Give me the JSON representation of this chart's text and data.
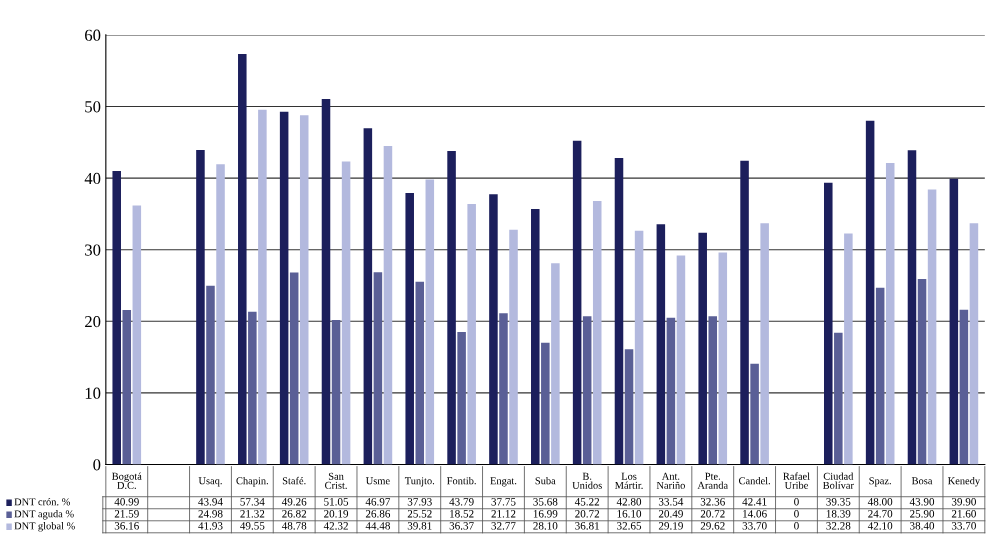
{
  "chart_data": {
    "type": "bar",
    "categories": [
      "Bogotá D.C.",
      null,
      "Usaq.",
      "Chapin.",
      "Stafé.",
      "San Crist.",
      "Usme",
      "Tunjto.",
      "Fontib.",
      "Engat.",
      "Suba",
      "B. Unidos",
      "Los Mártir.",
      "Ant. Nariño",
      "Pte. Aranda",
      "Candel.",
      "Rafael Uribe",
      "Ciudad Bolívar",
      "Spaz.",
      "Bosa",
      "Kenedy"
    ],
    "series": [
      {
        "name": "DNT crón. %",
        "color": "#1c1f5c",
        "values": [
          40.99,
          null,
          43.94,
          57.34,
          49.26,
          51.05,
          46.97,
          37.93,
          43.79,
          37.75,
          35.68,
          45.22,
          42.8,
          33.54,
          32.36,
          42.41,
          0,
          39.35,
          48.0,
          43.9,
          39.9
        ],
        "value_labels": [
          "40.99",
          null,
          "43.94",
          "57.34",
          "49.26",
          "51.05",
          "46.97",
          "37.93",
          "43.79",
          "37.75",
          "35.68",
          "45.22",
          "42.80",
          "33.54",
          "32.36",
          "42.41",
          "0",
          "39.35",
          "48.00",
          "43.90",
          "39.90"
        ]
      },
      {
        "name": "DNT aguda %",
        "color": "#5a5f96",
        "values": [
          21.59,
          null,
          24.98,
          21.32,
          26.82,
          20.19,
          26.86,
          25.52,
          18.52,
          21.12,
          16.99,
          20.72,
          16.1,
          20.49,
          20.72,
          14.06,
          0,
          18.39,
          24.7,
          25.9,
          21.6
        ],
        "value_labels": [
          "21.59",
          null,
          "24.98",
          "21.32",
          "26.82",
          "20.19",
          "26.86",
          "25.52",
          "18.52",
          "21.12",
          "16.99",
          "20.72",
          "16.10",
          "20.49",
          "20.72",
          "14.06",
          "0",
          "18.39",
          "24.70",
          "25.90",
          "21.60"
        ]
      },
      {
        "name": "DNT global %",
        "color": "#b3b9de",
        "values": [
          36.16,
          null,
          41.93,
          49.55,
          48.78,
          42.32,
          44.48,
          39.81,
          36.37,
          32.77,
          28.1,
          36.81,
          32.65,
          29.19,
          29.62,
          33.7,
          0,
          32.28,
          42.1,
          38.4,
          33.7
        ],
        "value_labels": [
          "36.16",
          null,
          "41.93",
          "49.55",
          "48.78",
          "42.32",
          "44.48",
          "39.81",
          "36.37",
          "32.77",
          "28.10",
          "36.81",
          "32.65",
          "29.19",
          "29.62",
          "33.70",
          "0",
          "32.28",
          "42.10",
          "38.40",
          "33.70"
        ]
      }
    ],
    "ylim": [
      0,
      60
    ],
    "yticks": [
      0,
      10,
      20,
      30,
      40,
      50,
      60
    ],
    "grid": "y",
    "legend": "bottom left"
  }
}
